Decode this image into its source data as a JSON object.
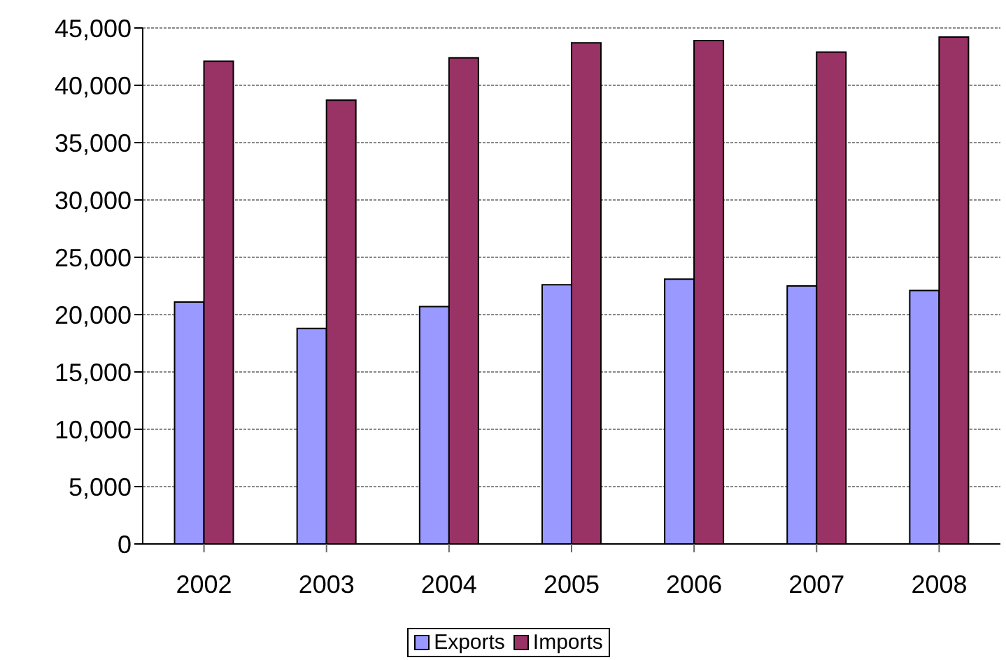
{
  "chart_data": {
    "type": "bar",
    "categories": [
      "2002",
      "2003",
      "2004",
      "2005",
      "2006",
      "2007",
      "2008"
    ],
    "series": [
      {
        "name": "Exports",
        "color": "#9999ff",
        "values": [
          21100,
          18800,
          20700,
          22600,
          23100,
          22500,
          22100
        ]
      },
      {
        "name": "Imports",
        "color": "#993366",
        "values": [
          42100,
          38700,
          42400,
          43700,
          43900,
          42900,
          44200
        ]
      }
    ],
    "ylim": [
      0,
      45000
    ],
    "yticks": [
      {
        "value": 0,
        "label": "0"
      },
      {
        "value": 5000,
        "label": "5,000"
      },
      {
        "value": 10000,
        "label": "10,000"
      },
      {
        "value": 15000,
        "label": "15,000"
      },
      {
        "value": 20000,
        "label": "20,000"
      },
      {
        "value": 25000,
        "label": "25,000"
      },
      {
        "value": 30000,
        "label": "30,000"
      },
      {
        "value": 35000,
        "label": "35,000"
      },
      {
        "value": 40000,
        "label": "40,000"
      },
      {
        "value": 45000,
        "label": "45,000"
      }
    ],
    "grid": "y",
    "legend": "bottom"
  }
}
